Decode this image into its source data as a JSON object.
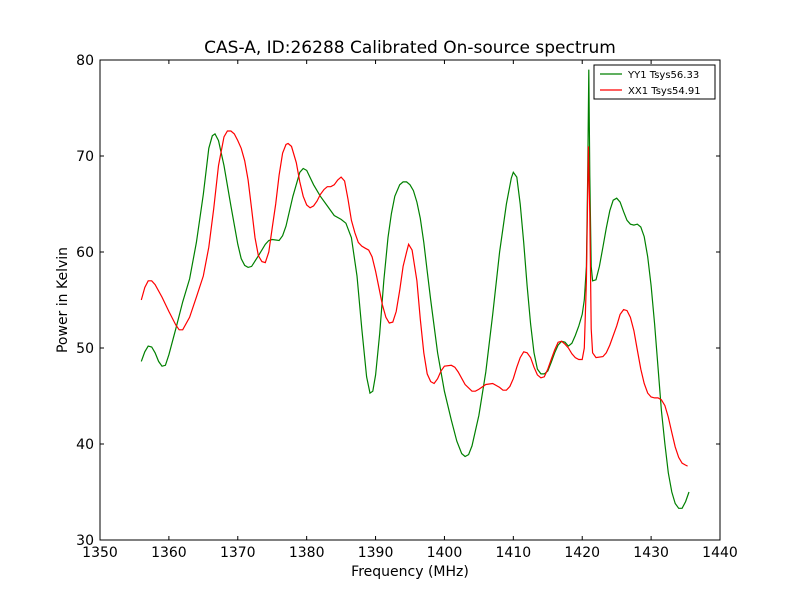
{
  "chart_data": {
    "type": "line",
    "title": "CAS-A, ID:26288 Calibrated On-source spectrum",
    "xlabel": "Frequency (MHz)",
    "ylabel": "Power in Kelvin",
    "xlim": [
      1350,
      1440
    ],
    "ylim": [
      30,
      80
    ],
    "xticks": [
      1350,
      1360,
      1370,
      1380,
      1390,
      1400,
      1410,
      1420,
      1430,
      1440
    ],
    "yticks": [
      30,
      40,
      50,
      60,
      70,
      80
    ],
    "grid": false,
    "legend_position": "top-right",
    "series": [
      {
        "name": "YY1 Tsys56.33",
        "color": "#008000",
        "points": [
          [
            1356.0,
            48.6
          ],
          [
            1356.5,
            49.6
          ],
          [
            1357.0,
            50.2
          ],
          [
            1357.5,
            50.1
          ],
          [
            1358.0,
            49.5
          ],
          [
            1358.5,
            48.6
          ],
          [
            1359.0,
            48.1
          ],
          [
            1359.5,
            48.2
          ],
          [
            1360.0,
            49.3
          ],
          [
            1361.0,
            52.0
          ],
          [
            1362.0,
            54.8
          ],
          [
            1363.0,
            57.2
          ],
          [
            1364.0,
            61.0
          ],
          [
            1365.0,
            66.0
          ],
          [
            1365.8,
            70.8
          ],
          [
            1366.3,
            72.1
          ],
          [
            1366.7,
            72.3
          ],
          [
            1367.2,
            71.6
          ],
          [
            1368.0,
            69.0
          ],
          [
            1369.0,
            64.8
          ],
          [
            1370.0,
            60.8
          ],
          [
            1370.5,
            59.3
          ],
          [
            1371.0,
            58.6
          ],
          [
            1371.5,
            58.4
          ],
          [
            1372.0,
            58.5
          ],
          [
            1373.0,
            59.6
          ],
          [
            1374.0,
            60.8
          ],
          [
            1374.5,
            61.2
          ],
          [
            1375.0,
            61.3
          ],
          [
            1376.0,
            61.2
          ],
          [
            1376.5,
            61.7
          ],
          [
            1377.0,
            62.7
          ],
          [
            1378.0,
            65.8
          ],
          [
            1379.0,
            68.3
          ],
          [
            1379.5,
            68.7
          ],
          [
            1380.0,
            68.5
          ],
          [
            1381.0,
            67.0
          ],
          [
            1382.0,
            65.8
          ],
          [
            1383.0,
            64.8
          ],
          [
            1384.0,
            63.8
          ],
          [
            1385.0,
            63.4
          ],
          [
            1385.7,
            63.0
          ],
          [
            1386.5,
            61.5
          ],
          [
            1387.3,
            57.5
          ],
          [
            1388.0,
            52.0
          ],
          [
            1388.7,
            47.0
          ],
          [
            1389.2,
            45.3
          ],
          [
            1389.6,
            45.5
          ],
          [
            1390.0,
            47.2
          ],
          [
            1390.6,
            51.5
          ],
          [
            1391.2,
            57.0
          ],
          [
            1391.8,
            61.5
          ],
          [
            1392.3,
            64.0
          ],
          [
            1392.8,
            65.8
          ],
          [
            1393.5,
            67.0
          ],
          [
            1394.0,
            67.3
          ],
          [
            1394.5,
            67.3
          ],
          [
            1395.0,
            67.0
          ],
          [
            1395.5,
            66.4
          ],
          [
            1396.0,
            65.2
          ],
          [
            1396.5,
            63.5
          ],
          [
            1397.0,
            61.0
          ],
          [
            1397.5,
            58.0
          ],
          [
            1398.0,
            55.0
          ],
          [
            1399.0,
            49.5
          ],
          [
            1400.0,
            45.5
          ],
          [
            1401.0,
            42.5
          ],
          [
            1401.8,
            40.3
          ],
          [
            1402.5,
            39.0
          ],
          [
            1403.0,
            38.7
          ],
          [
            1403.5,
            38.9
          ],
          [
            1404.0,
            39.8
          ],
          [
            1405.0,
            43.0
          ],
          [
            1406.0,
            47.5
          ],
          [
            1407.0,
            53.5
          ],
          [
            1408.0,
            60.0
          ],
          [
            1409.0,
            65.0
          ],
          [
            1409.7,
            67.7
          ],
          [
            1410.0,
            68.3
          ],
          [
            1410.5,
            67.8
          ],
          [
            1411.0,
            65.0
          ],
          [
            1411.5,
            61.0
          ],
          [
            1412.0,
            56.5
          ],
          [
            1412.5,
            52.5
          ],
          [
            1413.0,
            49.5
          ],
          [
            1413.5,
            47.8
          ],
          [
            1414.0,
            47.3
          ],
          [
            1414.5,
            47.3
          ],
          [
            1415.0,
            47.6
          ],
          [
            1415.5,
            48.5
          ],
          [
            1416.0,
            49.5
          ],
          [
            1416.5,
            50.3
          ],
          [
            1417.0,
            50.7
          ],
          [
            1417.5,
            50.6
          ],
          [
            1418.0,
            50.2
          ],
          [
            1418.5,
            50.5
          ],
          [
            1419.0,
            51.3
          ],
          [
            1419.5,
            52.3
          ],
          [
            1420.0,
            53.5
          ],
          [
            1420.3,
            55.0
          ],
          [
            1420.6,
            58.5
          ],
          [
            1420.8,
            68.0
          ],
          [
            1420.95,
            79.0
          ],
          [
            1421.1,
            68.0
          ],
          [
            1421.3,
            58.5
          ],
          [
            1421.5,
            57.0
          ],
          [
            1422.0,
            57.1
          ],
          [
            1422.5,
            58.5
          ],
          [
            1423.0,
            60.5
          ],
          [
            1423.5,
            62.5
          ],
          [
            1424.0,
            64.3
          ],
          [
            1424.5,
            65.4
          ],
          [
            1425.0,
            65.6
          ],
          [
            1425.5,
            65.2
          ],
          [
            1426.0,
            64.2
          ],
          [
            1426.5,
            63.3
          ],
          [
            1427.0,
            62.9
          ],
          [
            1427.5,
            62.8
          ],
          [
            1428.0,
            62.9
          ],
          [
            1428.5,
            62.6
          ],
          [
            1429.0,
            61.6
          ],
          [
            1429.5,
            59.5
          ],
          [
            1430.0,
            56.5
          ],
          [
            1430.5,
            52.5
          ],
          [
            1431.0,
            48.0
          ],
          [
            1431.5,
            43.5
          ],
          [
            1432.0,
            40.0
          ],
          [
            1432.5,
            37.0
          ],
          [
            1433.0,
            35.0
          ],
          [
            1433.5,
            33.8
          ],
          [
            1434.0,
            33.3
          ],
          [
            1434.5,
            33.3
          ],
          [
            1435.0,
            34.0
          ],
          [
            1435.5,
            35.0
          ]
        ]
      },
      {
        "name": "XX1 Tsys54.91",
        "color": "#ff0000",
        "points": [
          [
            1356.0,
            55.0
          ],
          [
            1356.5,
            56.3
          ],
          [
            1357.0,
            57.0
          ],
          [
            1357.5,
            57.0
          ],
          [
            1358.0,
            56.6
          ],
          [
            1359.0,
            55.3
          ],
          [
            1360.0,
            53.8
          ],
          [
            1361.0,
            52.4
          ],
          [
            1361.5,
            51.9
          ],
          [
            1362.0,
            51.9
          ],
          [
            1363.0,
            53.2
          ],
          [
            1364.0,
            55.3
          ],
          [
            1365.0,
            57.5
          ],
          [
            1365.8,
            60.5
          ],
          [
            1366.5,
            64.5
          ],
          [
            1367.2,
            69.0
          ],
          [
            1368.0,
            72.0
          ],
          [
            1368.5,
            72.6
          ],
          [
            1369.0,
            72.6
          ],
          [
            1369.5,
            72.3
          ],
          [
            1370.0,
            71.6
          ],
          [
            1370.5,
            70.8
          ],
          [
            1371.0,
            69.5
          ],
          [
            1371.5,
            67.5
          ],
          [
            1372.0,
            64.5
          ],
          [
            1372.5,
            61.5
          ],
          [
            1373.0,
            59.6
          ],
          [
            1373.5,
            59.0
          ],
          [
            1374.0,
            58.9
          ],
          [
            1374.5,
            60.0
          ],
          [
            1375.0,
            62.5
          ],
          [
            1375.5,
            65.0
          ],
          [
            1376.0,
            68.0
          ],
          [
            1376.5,
            70.3
          ],
          [
            1377.0,
            71.2
          ],
          [
            1377.3,
            71.3
          ],
          [
            1377.8,
            71.0
          ],
          [
            1378.5,
            69.3
          ],
          [
            1379.0,
            67.3
          ],
          [
            1379.5,
            65.8
          ],
          [
            1380.0,
            64.9
          ],
          [
            1380.5,
            64.6
          ],
          [
            1381.0,
            64.8
          ],
          [
            1381.5,
            65.3
          ],
          [
            1382.0,
            66.0
          ],
          [
            1382.5,
            66.5
          ],
          [
            1383.0,
            66.8
          ],
          [
            1383.5,
            66.8
          ],
          [
            1384.0,
            67.0
          ],
          [
            1384.5,
            67.5
          ],
          [
            1385.0,
            67.8
          ],
          [
            1385.5,
            67.4
          ],
          [
            1386.0,
            65.5
          ],
          [
            1386.5,
            63.3
          ],
          [
            1387.0,
            62.0
          ],
          [
            1387.5,
            61.0
          ],
          [
            1388.0,
            60.6
          ],
          [
            1388.5,
            60.4
          ],
          [
            1389.0,
            60.2
          ],
          [
            1389.5,
            59.5
          ],
          [
            1390.0,
            58.0
          ],
          [
            1391.0,
            54.5
          ],
          [
            1391.5,
            53.2
          ],
          [
            1392.0,
            52.6
          ],
          [
            1392.5,
            52.7
          ],
          [
            1393.0,
            53.8
          ],
          [
            1393.5,
            56.0
          ],
          [
            1394.0,
            58.5
          ],
          [
            1394.5,
            60.0
          ],
          [
            1394.8,
            60.8
          ],
          [
            1395.3,
            60.2
          ],
          [
            1396.0,
            57.0
          ],
          [
            1396.5,
            53.0
          ],
          [
            1397.0,
            49.5
          ],
          [
            1397.5,
            47.3
          ],
          [
            1398.0,
            46.5
          ],
          [
            1398.5,
            46.3
          ],
          [
            1399.0,
            46.8
          ],
          [
            1399.5,
            47.6
          ],
          [
            1400.0,
            48.1
          ],
          [
            1401.0,
            48.2
          ],
          [
            1401.5,
            48.0
          ],
          [
            1402.0,
            47.5
          ],
          [
            1403.0,
            46.2
          ],
          [
            1404.0,
            45.5
          ],
          [
            1404.5,
            45.5
          ],
          [
            1405.0,
            45.7
          ],
          [
            1406.0,
            46.2
          ],
          [
            1407.0,
            46.3
          ],
          [
            1408.0,
            45.9
          ],
          [
            1408.5,
            45.6
          ],
          [
            1409.0,
            45.6
          ],
          [
            1409.5,
            46.0
          ],
          [
            1410.0,
            46.8
          ],
          [
            1410.5,
            48.0
          ],
          [
            1411.0,
            49.0
          ],
          [
            1411.5,
            49.6
          ],
          [
            1412.0,
            49.5
          ],
          [
            1412.5,
            49.0
          ],
          [
            1413.0,
            48.0
          ],
          [
            1413.5,
            47.2
          ],
          [
            1414.0,
            46.9
          ],
          [
            1414.5,
            47.0
          ],
          [
            1415.0,
            47.8
          ],
          [
            1415.5,
            48.8
          ],
          [
            1416.0,
            49.8
          ],
          [
            1416.5,
            50.6
          ],
          [
            1417.0,
            50.7
          ],
          [
            1417.5,
            50.4
          ],
          [
            1418.0,
            50.0
          ],
          [
            1418.5,
            49.4
          ],
          [
            1419.0,
            49.0
          ],
          [
            1419.5,
            48.8
          ],
          [
            1420.0,
            48.8
          ],
          [
            1420.3,
            50.0
          ],
          [
            1420.6,
            57.0
          ],
          [
            1420.9,
            71.0
          ],
          [
            1421.1,
            64.0
          ],
          [
            1421.3,
            52.0
          ],
          [
            1421.5,
            49.5
          ],
          [
            1422.0,
            49.0
          ],
          [
            1423.0,
            49.1
          ],
          [
            1423.5,
            49.5
          ],
          [
            1424.0,
            50.3
          ],
          [
            1425.0,
            52.3
          ],
          [
            1425.5,
            53.5
          ],
          [
            1426.0,
            54.0
          ],
          [
            1426.5,
            53.9
          ],
          [
            1427.0,
            53.2
          ],
          [
            1427.5,
            51.8
          ],
          [
            1428.0,
            49.8
          ],
          [
            1428.5,
            47.8
          ],
          [
            1429.0,
            46.3
          ],
          [
            1429.5,
            45.3
          ],
          [
            1430.0,
            44.9
          ],
          [
            1430.5,
            44.8
          ],
          [
            1431.0,
            44.8
          ],
          [
            1431.5,
            44.6
          ],
          [
            1432.0,
            44.0
          ],
          [
            1432.5,
            42.8
          ],
          [
            1433.0,
            41.2
          ],
          [
            1433.5,
            39.7
          ],
          [
            1434.0,
            38.6
          ],
          [
            1434.5,
            38.0
          ],
          [
            1435.0,
            37.8
          ],
          [
            1435.3,
            37.7
          ]
        ]
      }
    ]
  }
}
